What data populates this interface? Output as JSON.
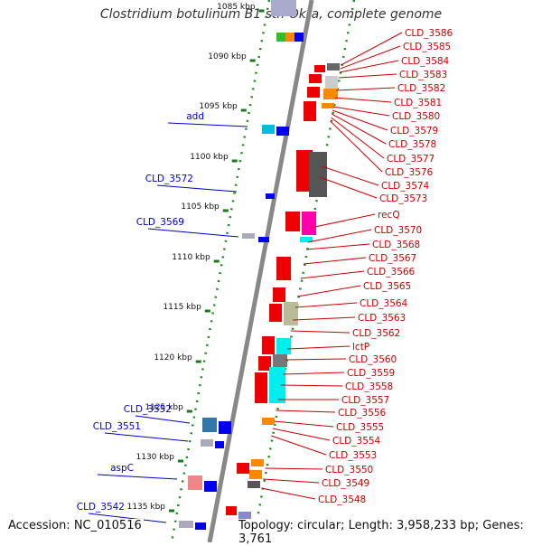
{
  "title": "Clostridium botulinum B1 str. Okra, complete genome",
  "accession": "Accession: NC_010516",
  "topology": "Topology: circular; Length: 3,958,233 bp; Genes: 3,761",
  "colors": {
    "axis": "#888888",
    "tick": "#1a7a1a",
    "right_label": "#cc0000",
    "left_label": "#0000cc",
    "forward_gene": "#ff0000",
    "reverse_gene": "#0000ff"
  },
  "ticks": [
    "1085 kbp",
    "1090 kbp",
    "1095 kbp",
    "1100 kbp",
    "1105 kbp",
    "1110 kbp",
    "1115 kbp",
    "1120 kbp",
    "1125 kbp",
    "1130 kbp",
    "1135 kbp"
  ],
  "right_labels": [
    "CLD_3586",
    "CLD_3585",
    "CLD_3584",
    "CLD_3583",
    "CLD_3582",
    "CLD_3581",
    "CLD_3580",
    "CLD_3579",
    "CLD_3578",
    "CLD_3577",
    "CLD_3576",
    "CLD_3574",
    "CLD_3573",
    "recQ",
    "CLD_3570",
    "CLD_3568",
    "CLD_3567",
    "CLD_3566",
    "CLD_3565",
    "CLD_3564",
    "CLD_3563",
    "CLD_3562",
    "lctP",
    "CLD_3560",
    "CLD_3559",
    "CLD_3558",
    "CLD_3557",
    "CLD_3556",
    "CLD_3555",
    "CLD_3554",
    "CLD_3553",
    "CLD_3550",
    "CLD_3549",
    "CLD_3548"
  ],
  "left_labels": [
    "add",
    "CLD_3572",
    "CLD_3569",
    "CLD_3552",
    "CLD_3551",
    "aspC",
    "CLD_3542"
  ]
}
